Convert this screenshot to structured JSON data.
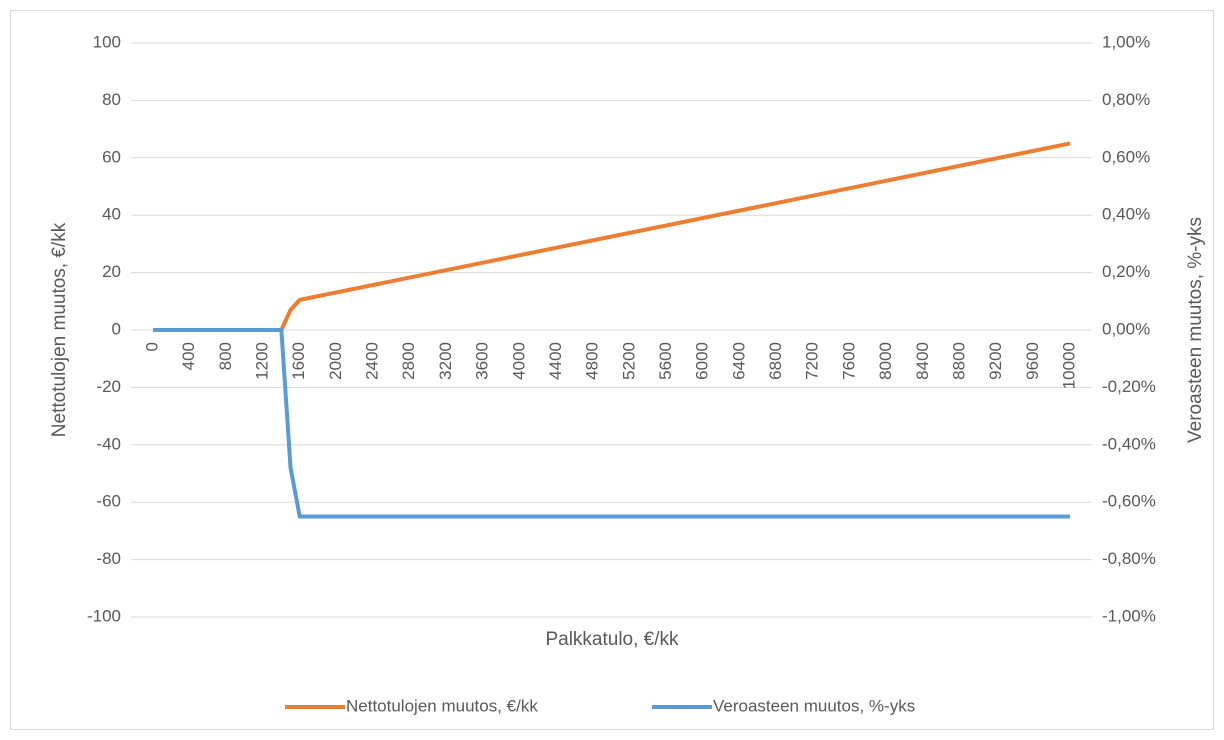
{
  "chart_data": {
    "type": "line",
    "x_label": "Palkkatulo, €/kk",
    "y_label": "Nettotulojen muutos, €/kk",
    "y2_label": "Veroasteen muutos, %-yks",
    "x": [
      0,
      1400,
      1500,
      1600,
      10000
    ],
    "xlim": [
      0,
      10000
    ],
    "xticks": [
      0,
      400,
      800,
      1200,
      1600,
      2000,
      2400,
      2800,
      3200,
      3600,
      4000,
      4400,
      4800,
      5200,
      5600,
      6000,
      6400,
      6800,
      7200,
      7600,
      8000,
      8400,
      8800,
      9200,
      9600,
      10000
    ],
    "ylim": [
      -100,
      100
    ],
    "yticks": [
      -100,
      -80,
      -60,
      -40,
      -20,
      0,
      20,
      40,
      60,
      80,
      100
    ],
    "y2lim": [
      -1,
      1
    ],
    "y2ticks": [
      {
        "value": -1,
        "label": "-1,00%"
      },
      {
        "value": -0.8,
        "label": "-0,80%"
      },
      {
        "value": -0.6,
        "label": "-0,60%"
      },
      {
        "value": -0.4,
        "label": "-0,40%"
      },
      {
        "value": -0.2,
        "label": "-0,20%"
      },
      {
        "value": 0,
        "label": "0,00%"
      },
      {
        "value": 0.2,
        "label": "0,20%"
      },
      {
        "value": 0.4,
        "label": "0,40%"
      },
      {
        "value": 0.6,
        "label": "0,60%"
      },
      {
        "value": 0.8,
        "label": "0,80%"
      },
      {
        "value": 1,
        "label": "1,00%"
      }
    ],
    "grid": true,
    "legend": "bottom",
    "series": [
      {
        "name": "Nettotulojen muutos, €/kk",
        "color": "#ed7d31",
        "values": [
          0,
          0,
          7,
          10.5,
          65
        ]
      },
      {
        "name": "Veroasteen muutos, %-yks",
        "color": "#5b9bd5",
        "axis": "y2",
        "values": [
          0,
          0,
          -0.48,
          -0.65,
          -0.65
        ]
      }
    ]
  }
}
